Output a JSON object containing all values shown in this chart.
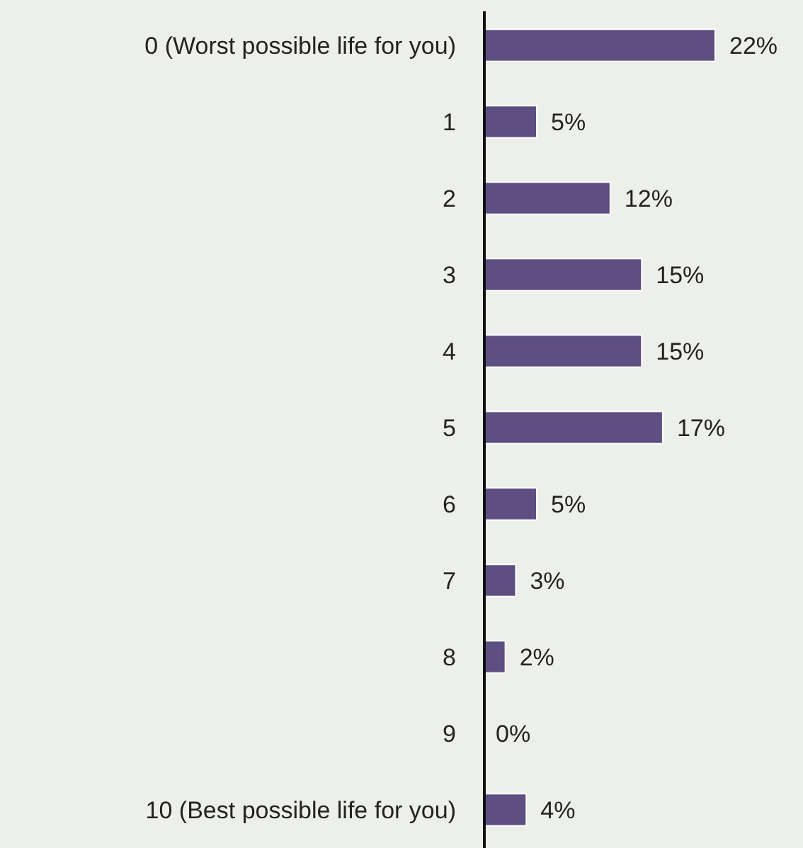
{
  "chart_data": {
    "type": "bar",
    "orientation": "horizontal",
    "categories": [
      "0 (Worst possible life for you)",
      "1",
      "2",
      "3",
      "4",
      "5",
      "6",
      "7",
      "8",
      "9",
      "10 (Best possible life for you)"
    ],
    "values": [
      22,
      5,
      12,
      15,
      15,
      17,
      5,
      3,
      2,
      0,
      4
    ],
    "value_labels": [
      "22%",
      "5%",
      "12%",
      "15%",
      "15%",
      "17%",
      "5%",
      "3%",
      "2%",
      "0%",
      "4%"
    ],
    "color": "#5e4f82",
    "tick_labels": "y"
  }
}
